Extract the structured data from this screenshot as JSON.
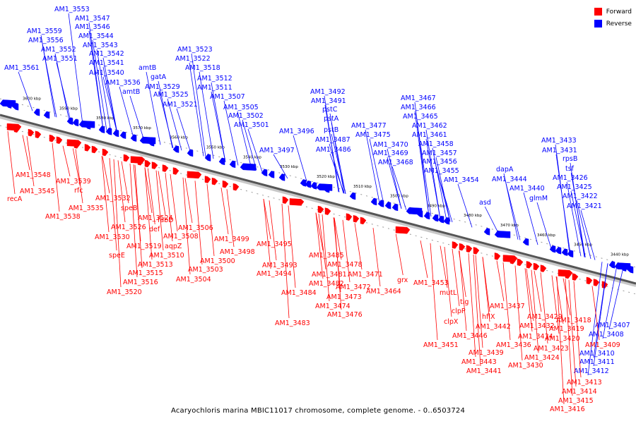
{
  "legend": {
    "forward_label": "Forward",
    "reverse_label": "Reverse",
    "forward_color": "#ff0000",
    "reverse_color": "#0000ff"
  },
  "caption": "Acaryochloris marina MBIC11017 chromosome, complete genome. - 0..6503724",
  "axis": {
    "unit": "kbp",
    "ticks": [
      3600,
      3590,
      3580,
      3570,
      3560,
      3550,
      3540,
      3530,
      3520,
      3510,
      3500,
      3490,
      3480,
      3470,
      3460,
      3450,
      3440
    ]
  },
  "reverse_genes": [
    "AM1_3553",
    "AM1_3547",
    "AM1_3546",
    "AM1_3559",
    "AM1_3544",
    "AM1_3556",
    "AM1_3543",
    "AM1_3552",
    "AM1_3542",
    "AM1_3551",
    "AM1_3541",
    "AM1_3561",
    "AM1_3540",
    "amtB",
    "AM1_3523",
    "AM1_3522",
    "gatA",
    "AM1_3518",
    "AM1_3536",
    "AM1_3529",
    "AM1_3512",
    "amtB",
    "AM1_3511",
    "AM1_3525",
    "AM1_3507",
    "AM1_3521",
    "AM1_3505",
    "AM1_3502",
    "AM1_3501",
    "AM1_3492",
    "AM1_3491",
    "pstC",
    "pstA",
    "AM1_3496",
    "pstB",
    "AM1_3487",
    "AM1_3497",
    "AM1_3486",
    "AM1_3477",
    "AM1_3475",
    "AM1_3470",
    "AM1_3469",
    "AM1_3468",
    "AM1_3467",
    "AM1_3466",
    "AM1_3465",
    "AM1_3462",
    "AM1_3461",
    "AM1_3458",
    "AM1_3457",
    "AM1_3456",
    "AM1_3455",
    "AM1_3454",
    "dapA",
    "AM1_3444",
    "AM1_3440",
    "asd",
    "glmM",
    "AM1_3433",
    "AM1_3431",
    "rpsB",
    "tsf",
    "AM1_3426",
    "AM1_3425",
    "AM1_3422",
    "AM1_3421",
    "AM1_3407",
    "AM1_3408",
    "AM1_3410",
    "AM1_3411",
    "AM1_3412"
  ],
  "forward_genes": [
    "AM1_3548",
    "recA",
    "AM1_3545",
    "AM1_3539",
    "rfc",
    "AM1_3535",
    "AM1_3538",
    "AM1_3532",
    "speB",
    "AM1_3524",
    "AM1_3526",
    "fabD",
    "AM1_3530",
    "def",
    "AM1_3508",
    "AM1_3506",
    "AM1_3519",
    "aqpZ",
    "speE",
    "AM1_3510",
    "AM1_3513",
    "AM1_3515",
    "AM1_3516",
    "AM1_3520",
    "AM1_3499",
    "AM1_3498",
    "AM1_3500",
    "AM1_3503",
    "AM1_3504",
    "AM1_3495",
    "AM1_3485",
    "AM1_3493",
    "AM1_3494",
    "AM1_3481",
    "AM1_3482",
    "AM1_3484",
    "AM1_3483",
    "AM1_3478",
    "AM1_3471",
    "AM1_3472",
    "AM1_3473",
    "AM1_3474",
    "AM1_3476",
    "grx",
    "AM1_3464",
    "AM1_3453",
    "mutL",
    "tig",
    "clpP",
    "clpX",
    "AM1_3451",
    "AM1_3437",
    "hflX",
    "AM1_3442",
    "AM1_3429",
    "AM1_3432",
    "AM1_3446",
    "AM1_3434",
    "AM1_3439",
    "AM1_3436",
    "AM1_3443",
    "AM1_3441",
    "AM1_3430",
    "AM1_3418",
    "AM1_3419",
    "AM1_3420",
    "AM1_3423",
    "AM1_3424",
    "AM1_3409",
    "AM1_3413",
    "AM1_3414",
    "AM1_3415",
    "AM1_3416"
  ]
}
